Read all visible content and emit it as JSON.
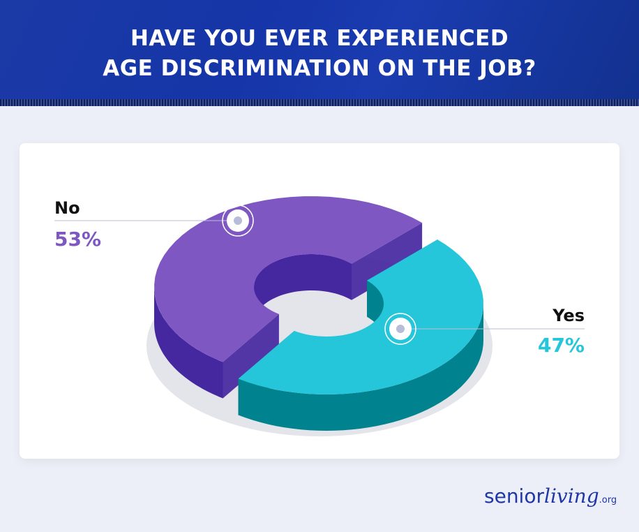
{
  "header": {
    "title_line1": "HAVE YOU EVER EXPERIENCED",
    "title_line2": "AGE DISCRIMINATION ON THE JOB?"
  },
  "chart_data": {
    "type": "pie",
    "style": "3d-donut",
    "title": "HAVE YOU EVER EXPERIENCED AGE DISCRIMINATION ON THE JOB?",
    "categories": [
      "No",
      "Yes"
    ],
    "values": [
      53,
      47
    ],
    "labels": [
      "53%",
      "47%"
    ],
    "colors": {
      "No": {
        "top": "#7e57c2",
        "side": "#4527a0"
      },
      "Yes": {
        "top": "#26c6da",
        "side": "#00838f"
      }
    }
  },
  "logo": {
    "text": "seniorliving.org",
    "part1": "senior",
    "part2": "living",
    "part3": ".org"
  }
}
